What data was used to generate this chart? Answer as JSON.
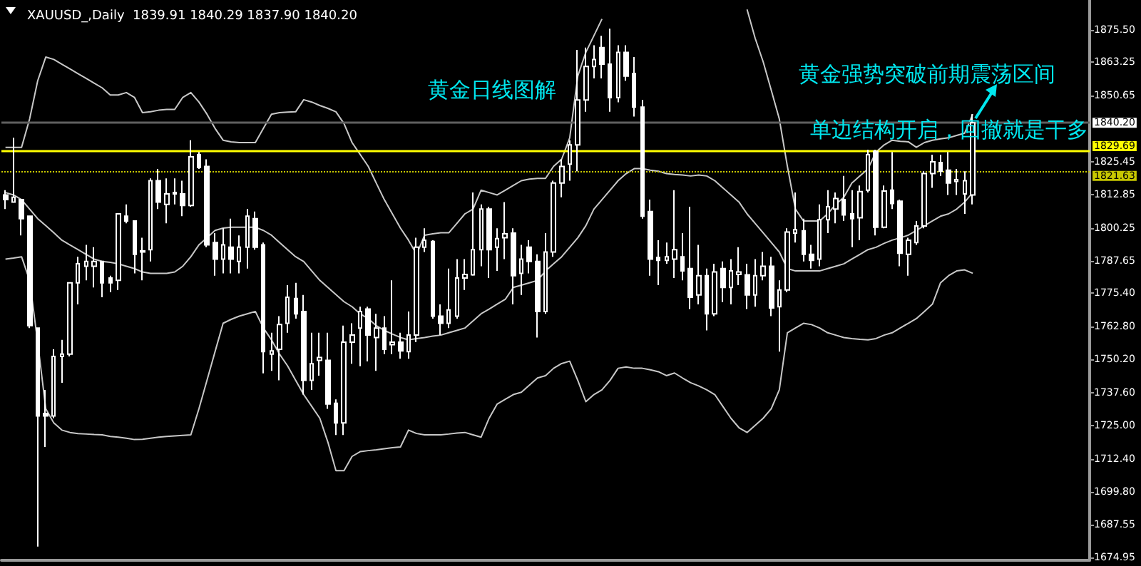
{
  "chart_data": {
    "type": "candlestick",
    "title": "XAUUSD_,Daily  1839.91 1840.29 1837.90 1840.20",
    "annotations": [
      "黄金日线图解",
      "黄金强势突破前期震荡区间",
      "单边结构开启，回撤就是干多"
    ],
    "categories": [
      null,
      null,
      null,
      null,
      null,
      null,
      null,
      null,
      null,
      null,
      null,
      null,
      null,
      null,
      null,
      null,
      null,
      null,
      null,
      null,
      null,
      null,
      null,
      null,
      null,
      null,
      null,
      null,
      null,
      null,
      null,
      null,
      null,
      null,
      null,
      null,
      null,
      null,
      null,
      null,
      null,
      null,
      null,
      null,
      null,
      null,
      null,
      null,
      null,
      null,
      null,
      null,
      null,
      null,
      null,
      null,
      null,
      null,
      null,
      null,
      null,
      null,
      null,
      null,
      null,
      null,
      null,
      null,
      null,
      null,
      null,
      null,
      null,
      null,
      null,
      null,
      null,
      null,
      null,
      null,
      null,
      null,
      null,
      null,
      null,
      null,
      null,
      null,
      null,
      null,
      null,
      null,
      null,
      null,
      null,
      null,
      null,
      null,
      null,
      null,
      null,
      null,
      null,
      null,
      null,
      null,
      null,
      null,
      null,
      null,
      null,
      null,
      null,
      null,
      null,
      null,
      null,
      null,
      null,
      null,
      null
    ],
    "color": "#ffffff",
    "ohlc": [
      [
        1812.8,
        1814.6,
        1807.4,
        1811.0
      ],
      [
        1810.1,
        1834.5,
        1810.1,
        1811.9
      ],
      [
        1811.0,
        1811.0,
        1797.4,
        1803.8
      ],
      [
        1804.7,
        1804.7,
        1762.2,
        1763.1
      ],
      [
        1762.2,
        1762.2,
        1679.1,
        1728.8
      ],
      [
        1729.7,
        1738.7,
        1717.0,
        1728.8
      ],
      [
        1728.8,
        1754.1,
        1727.9,
        1751.4
      ],
      [
        1751.4,
        1757.7,
        1741.4,
        1752.3
      ],
      [
        1752.3,
        1779.4,
        1751.4,
        1779.4
      ],
      [
        1779.4,
        1789.3,
        1771.2,
        1786.6
      ],
      [
        1785.7,
        1793.8,
        1780.3,
        1787.5
      ],
      [
        1785.7,
        1792.9,
        1777.6,
        1787.5
      ],
      [
        1787.5,
        1787.5,
        1773.9,
        1779.4
      ],
      [
        1781.2,
        1782.1,
        1775.8,
        1779.4
      ],
      [
        1780.3,
        1805.6,
        1776.7,
        1805.6
      ],
      [
        1804.7,
        1809.2,
        1802.0,
        1802.9
      ],
      [
        1802.9,
        1802.9,
        1783.0,
        1790.2
      ],
      [
        1791.1,
        1796.5,
        1780.3,
        1791.5
      ],
      [
        1792.0,
        1819.1,
        1787.5,
        1818.2
      ],
      [
        1818.2,
        1822.7,
        1807.4,
        1810.1
      ],
      [
        1809.2,
        1819.1,
        1802.0,
        1813.2
      ],
      [
        1813.2,
        1819.1,
        1809.2,
        1813.7
      ],
      [
        1813.2,
        1818.2,
        1804.7,
        1808.8
      ],
      [
        1808.8,
        1833.6,
        1808.3,
        1827.3
      ],
      [
        1828.1,
        1829.1,
        1822.7,
        1823.3
      ],
      [
        1823.6,
        1826.3,
        1792.9,
        1793.8
      ],
      [
        1794.7,
        1798.3,
        1782.1,
        1788.4
      ],
      [
        1788.4,
        1800.1,
        1783.0,
        1793.8
      ],
      [
        1792.9,
        1803.8,
        1783.0,
        1788.4
      ],
      [
        1787.5,
        1797.4,
        1783.0,
        1792.9
      ],
      [
        1792.9,
        1807.4,
        1784.8,
        1804.7
      ],
      [
        1803.8,
        1806.5,
        1792.0,
        1792.9
      ],
      [
        1793.8,
        1794.7,
        1745.0,
        1753.2
      ],
      [
        1752.3,
        1760.4,
        1745.9,
        1753.5
      ],
      [
        1754.1,
        1766.7,
        1742.3,
        1763.5
      ],
      [
        1764.0,
        1778.5,
        1760.4,
        1773.9
      ],
      [
        1773.4,
        1779.4,
        1765.8,
        1767.6
      ],
      [
        1768.5,
        1774.8,
        1736.9,
        1742.3
      ],
      [
        1742.3,
        1760.4,
        1738.7,
        1748.6
      ],
      [
        1749.9,
        1760.4,
        1744.1,
        1751.0
      ],
      [
        1749.9,
        1760.4,
        1731.5,
        1733.3
      ],
      [
        1733.6,
        1735.1,
        1721.5,
        1726.1
      ],
      [
        1726.1,
        1763.1,
        1721.5,
        1756.8
      ],
      [
        1756.8,
        1764.0,
        1748.6,
        1759.5
      ],
      [
        1762.2,
        1770.3,
        1747.7,
        1768.5
      ],
      [
        1769.4,
        1770.3,
        1749.5,
        1759.5
      ],
      [
        1758.6,
        1767.6,
        1745.9,
        1762.2
      ],
      [
        1762.2,
        1766.7,
        1752.3,
        1754.1
      ],
      [
        1755.9,
        1780.3,
        1752.3,
        1756.8
      ],
      [
        1756.8,
        1760.4,
        1750.5,
        1753.5
      ],
      [
        1753.2,
        1768.5,
        1750.5,
        1759.5
      ],
      [
        1759.5,
        1796.5,
        1756.8,
        1792.9
      ],
      [
        1792.9,
        1800.1,
        1791.1,
        1795.6
      ],
      [
        1795.1,
        1795.6,
        1765.8,
        1766.7
      ],
      [
        1766.7,
        1771.2,
        1759.5,
        1764.0
      ],
      [
        1764.0,
        1784.8,
        1762.2,
        1769.1
      ],
      [
        1766.7,
        1788.4,
        1765.8,
        1781.2
      ],
      [
        1781.2,
        1788.4,
        1776.7,
        1782.6
      ],
      [
        1782.4,
        1813.7,
        1782.1,
        1792.0
      ],
      [
        1792.0,
        1809.2,
        1785.7,
        1807.4
      ],
      [
        1807.4,
        1808.3,
        1781.2,
        1792.0
      ],
      [
        1792.9,
        1800.1,
        1783.9,
        1796.2
      ],
      [
        1796.5,
        1810.1,
        1788.4,
        1798.0
      ],
      [
        1798.3,
        1800.1,
        1771.2,
        1782.1
      ],
      [
        1783.0,
        1793.8,
        1774.8,
        1788.4
      ],
      [
        1792.9,
        1795.6,
        1783.0,
        1787.5
      ],
      [
        1787.5,
        1790.2,
        1758.6,
        1768.5
      ],
      [
        1768.5,
        1798.3,
        1767.6,
        1791.1
      ],
      [
        1791.1,
        1818.2,
        1789.3,
        1817.3
      ],
      [
        1817.3,
        1826.3,
        1811.9,
        1823.6
      ],
      [
        1824.5,
        1833.6,
        1818.2,
        1831.8
      ],
      [
        1831.8,
        1867.9,
        1821.8,
        1848.9
      ],
      [
        1848.9,
        1868.8,
        1844.4,
        1861.6
      ],
      [
        1861.6,
        1869.7,
        1857.1,
        1864.3
      ],
      [
        1868.8,
        1873.3,
        1857.1,
        1862.5
      ],
      [
        1862.5,
        1876.0,
        1844.4,
        1849.8
      ],
      [
        1849.8,
        1869.7,
        1848.0,
        1867.0
      ],
      [
        1867.0,
        1869.7,
        1856.2,
        1858.0
      ],
      [
        1858.9,
        1865.2,
        1842.6,
        1846.2
      ],
      [
        1846.2,
        1848.9,
        1803.8,
        1804.7
      ],
      [
        1806.5,
        1811.0,
        1782.1,
        1788.4
      ],
      [
        1789.0,
        1795.6,
        1778.5,
        1787.9
      ],
      [
        1787.9,
        1794.7,
        1786.6,
        1789.3
      ],
      [
        1788.4,
        1814.6,
        1781.2,
        1792.0
      ],
      [
        1789.3,
        1798.3,
        1780.3,
        1783.9
      ],
      [
        1784.8,
        1808.3,
        1769.4,
        1773.9
      ],
      [
        1774.8,
        1793.8,
        1771.2,
        1782.1
      ],
      [
        1782.1,
        1784.8,
        1761.3,
        1767.6
      ],
      [
        1767.6,
        1786.6,
        1766.7,
        1783.5
      ],
      [
        1784.8,
        1787.5,
        1772.1,
        1777.6
      ],
      [
        1777.6,
        1788.4,
        1771.2,
        1783.9
      ],
      [
        1782.6,
        1792.9,
        1778.5,
        1783.5
      ],
      [
        1782.4,
        1786.6,
        1769.4,
        1774.8
      ],
      [
        1774.8,
        1788.4,
        1770.3,
        1782.1
      ],
      [
        1782.1,
        1791.1,
        1780.3,
        1785.7
      ],
      [
        1785.7,
        1789.3,
        1766.7,
        1769.8
      ],
      [
        1770.3,
        1780.3,
        1753.2,
        1776.7
      ],
      [
        1776.7,
        1800.1,
        1775.8,
        1798.7
      ],
      [
        1798.3,
        1813.7,
        1794.7,
        1799.6
      ],
      [
        1799.2,
        1803.8,
        1787.5,
        1790.2
      ],
      [
        1790.2,
        1793.8,
        1784.8,
        1787.9
      ],
      [
        1788.4,
        1809.2,
        1785.7,
        1803.4
      ],
      [
        1803.4,
        1814.6,
        1798.3,
        1808.3
      ],
      [
        1807.4,
        1813.7,
        1802.0,
        1811.4
      ],
      [
        1811.0,
        1820.0,
        1802.9,
        1805.2
      ],
      [
        1805.6,
        1814.6,
        1792.9,
        1803.8
      ],
      [
        1804.1,
        1816.4,
        1795.6,
        1814.1
      ],
      [
        1814.6,
        1830.0,
        1813.7,
        1828.1
      ],
      [
        1829.4,
        1830.0,
        1797.4,
        1800.5
      ],
      [
        1800.5,
        1816.4,
        1800.1,
        1814.3
      ],
      [
        1814.6,
        1829.1,
        1807.4,
        1809.5
      ],
      [
        1810.4,
        1811.0,
        1785.7,
        1790.6
      ],
      [
        1790.2,
        1796.5,
        1782.1,
        1795.6
      ],
      [
        1794.7,
        1802.9,
        1793.8,
        1801.0
      ],
      [
        1801.0,
        1821.8,
        1800.1,
        1820.9
      ],
      [
        1820.9,
        1828.1,
        1815.5,
        1825.4
      ],
      [
        1825.1,
        1828.1,
        1820.0,
        1821.8
      ],
      [
        1822.2,
        1829.1,
        1812.8,
        1817.3
      ],
      [
        1817.9,
        1822.7,
        1812.8,
        1818.6
      ],
      [
        1813.2,
        1821.8,
        1805.6,
        1818.2
      ],
      [
        1812.8,
        1843.5,
        1809.2,
        1840.2
      ]
    ],
    "series": [
      {
        "type": "line",
        "color": "#c8c8c8",
        "values": [
          1830.9,
          1830.9,
          1830.9,
          1841.7,
          1856.2,
          1865.2,
          1864.3,
          1862.5,
          1860.7,
          1858.9,
          1857.1,
          1855.3,
          1853.5,
          1850.8,
          1850.8,
          1851.7,
          1849.9,
          1844.1,
          1844.4,
          1845.0,
          1845.3,
          1845.3,
          1849.9,
          1851.7,
          1848.1,
          1843.5,
          1838.1,
          1833.6,
          1833.0,
          1832.7,
          1832.7,
          1832.7,
          1838.1,
          1843.5,
          1844.1,
          1844.3,
          1844.4,
          1849.0,
          1848.1,
          1846.8,
          1845.7,
          1844.4,
          1839.9,
          1832.7,
          1828.2,
          1823.7,
          1817.3,
          1811.0,
          1805.6,
          1800.2,
          1795.6,
          1790.2,
          1797.5,
          1798.0,
          1798.4,
          1798.4,
          1802.0,
          1805.6,
          1807.4,
          1814.6,
          1813.7,
          1812.8,
          1814.6,
          1816.4,
          1818.2,
          1818.8,
          1819.1,
          1819.1,
          1823.7,
          1826.4,
          1834.5,
          1858.0,
          1867.0,
          1873.3,
          1879.7,
          null,
          null,
          null,
          null,
          null,
          null,
          null,
          null,
          null,
          null,
          null,
          null,
          null,
          null,
          null,
          null,
          null,
          1883.3,
          1872.4,
          1863.4,
          1852.6,
          1841.7,
          1823.7,
          1807.4,
          1802.9,
          1802.9,
          1802.9,
          1805.6,
          1809.2,
          1811.9,
          1817.3,
          1820.0,
          1822.7,
          1829.1,
          1831.8,
          1833.6,
          1833.2,
          1833.0,
          1830.9,
          1832.7,
          1833.6,
          1834.1,
          1834.5,
          1835.4,
          1836.3,
          1843.5
        ]
      },
      {
        "type": "line",
        "color": "#c8c8c8",
        "values": [
          1813.7,
          1812.8,
          1811.0,
          1807.4,
          1803.8,
          1801.1,
          1798.4,
          1795.6,
          1793.8,
          1792.0,
          1790.2,
          1788.4,
          1787.5,
          1787.2,
          1786.6,
          1785.7,
          1784.8,
          1783.5,
          1783.0,
          1783.0,
          1783.0,
          1783.5,
          1785.7,
          1789.3,
          1793.8,
          1796.5,
          1799.3,
          1800.2,
          1800.5,
          1800.5,
          1800.5,
          1800.5,
          1799.3,
          1797.5,
          1794.7,
          1792.0,
          1789.3,
          1787.5,
          1783.9,
          1780.3,
          1777.6,
          1774.9,
          1772.2,
          1770.3,
          1767.6,
          1765.8,
          1763.1,
          1761.3,
          1759.9,
          1758.6,
          1757.7,
          1758.2,
          1758.6,
          1759.1,
          1759.5,
          1760.4,
          1761.3,
          1762.2,
          1764.9,
          1767.6,
          1769.4,
          1771.3,
          1773.1,
          1777.6,
          1778.5,
          1779.4,
          1780.3,
          1783.9,
          1786.6,
          1789.3,
          1792.9,
          1796.5,
          1801.1,
          1807.4,
          1811.0,
          1814.6,
          1818.2,
          1820.9,
          1822.8,
          1822.8,
          1822.2,
          1821.8,
          1820.9,
          1820.6,
          1820.4,
          1820.0,
          1820.4,
          1820.0,
          1818.2,
          1815.5,
          1812.8,
          1810.1,
          1805.6,
          1802.0,
          1798.4,
          1794.7,
          1791.1,
          1784.8,
          1783.9,
          1783.9,
          1783.9,
          1783.9,
          1784.8,
          1785.7,
          1786.6,
          1788.4,
          1790.2,
          1792.0,
          1792.9,
          1794.4,
          1795.6,
          1796.5,
          1797.5,
          1799.3,
          1801.1,
          1802.9,
          1804.7,
          1805.6,
          1807.4,
          1810.1,
          1813.7
        ]
      },
      {
        "type": "line",
        "color": "#c8c8c8",
        "values": [
          1788.4,
          1788.8,
          1789.3,
          1780.3,
          1756.8,
          1731.5,
          1726.1,
          1723.4,
          1722.5,
          1722.1,
          1721.9,
          1721.7,
          1721.6,
          1721.0,
          1720.7,
          1720.3,
          1719.8,
          1719.9,
          1720.3,
          1720.7,
          1721.0,
          1721.2,
          1721.4,
          1721.6,
          1731.5,
          1742.3,
          1753.2,
          1764.0,
          1765.5,
          1766.7,
          1767.6,
          1768.5,
          1762.2,
          1757.7,
          1752.3,
          1747.8,
          1742.3,
          1736.9,
          1732.4,
          1727.9,
          1718.8,
          1708.0,
          1708.0,
          1713.4,
          1715.2,
          1715.6,
          1715.9,
          1716.3,
          1716.7,
          1717.0,
          1723.4,
          1722.1,
          1721.6,
          1721.6,
          1721.6,
          1721.9,
          1722.3,
          1722.5,
          1721.6,
          1720.7,
          1727.9,
          1733.3,
          1735.1,
          1736.9,
          1737.8,
          1740.5,
          1743.2,
          1744.1,
          1746.9,
          1748.7,
          1749.6,
          1742.3,
          1734.2,
          1736.9,
          1738.7,
          1742.3,
          1746.9,
          1747.4,
          1746.9,
          1746.9,
          1746.3,
          1745.6,
          1744.1,
          1745.1,
          1743.2,
          1741.4,
          1740.2,
          1738.7,
          1736.9,
          1732.4,
          1727.9,
          1724.3,
          1722.5,
          1725.2,
          1727.9,
          1731.5,
          1738.7,
          1760.4,
          1762.2,
          1764.0,
          1763.5,
          1762.2,
          1760.4,
          1759.5,
          1758.6,
          1758.2,
          1757.9,
          1757.7,
          1758.2,
          1759.5,
          1760.4,
          1762.2,
          1764.0,
          1765.8,
          1768.5,
          1771.3,
          1779.4,
          1782.1,
          1783.9,
          1784.3,
          1783.0
        ]
      }
    ],
    "ylim": [
      1673.9,
      1886.9
    ],
    "yticks": [
      {
        "value": 1875.5,
        "label": "1875.50"
      },
      1863.25,
      1850.65,
      1825.45,
      1812.85,
      1800.25,
      1787.65,
      {
        "value": 1775.4,
        "label": "1775.40"
      },
      {
        "value": 1762.8,
        "label": "1762.80"
      },
      {
        "value": 1750.2,
        "label": "1750.20"
      },
      {
        "value": 1737.6,
        "label": "1737.60"
      },
      {
        "value": 1725,
        "label": "1725.00"
      },
      {
        "value": 1712.4,
        "label": "1712.40"
      },
      {
        "value": 1699.8,
        "label": "1699.80"
      },
      1687.55,
      1674.95
    ],
    "ref_lines": [
      {
        "axis": "y",
        "value": 1840.2,
        "label": "1840.20",
        "color": "#606060",
        "line_style": "solid"
      },
      {
        "axis": "y",
        "value": 1829.69,
        "label": "1829.69",
        "color": "#ffff00",
        "line_style": "solid"
      },
      {
        "axis": "y",
        "value": 1821.63,
        "label": "1821.63",
        "color": "#c8c800",
        "line_style": "dotted"
      }
    ],
    "tick_labels": "y",
    "grid": false
  }
}
